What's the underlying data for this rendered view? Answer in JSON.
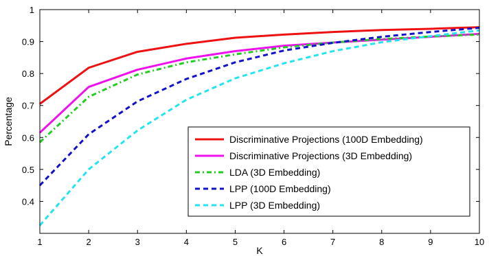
{
  "chart_data": {
    "type": "line",
    "title": "",
    "xlabel": "K",
    "ylabel": "Percentage",
    "xlim": [
      1,
      10
    ],
    "ylim": [
      0.3,
      1.0
    ],
    "x": [
      1,
      2,
      3,
      4,
      5,
      6,
      7,
      8,
      9,
      10
    ],
    "xticks": [
      "1",
      "2",
      "3",
      "4",
      "5",
      "6",
      "7",
      "8",
      "9",
      "10"
    ],
    "yticks": [
      "0.4",
      "0.5",
      "0.6",
      "0.7",
      "0.8",
      "0.9",
      "1"
    ],
    "grid": false,
    "legend_position": "bottom-right",
    "series": [
      {
        "name": "Discriminative Projections (100D Embedding)",
        "color": "#ee1111",
        "style": "solid",
        "values": [
          0.705,
          0.818,
          0.868,
          0.893,
          0.912,
          0.922,
          0.93,
          0.936,
          0.94,
          0.945
        ]
      },
      {
        "name": "Discriminative Projections (3D Embedding)",
        "color": "#ee11ee",
        "style": "solid",
        "values": [
          0.615,
          0.758,
          0.812,
          0.847,
          0.87,
          0.887,
          0.897,
          0.906,
          0.915,
          0.924
        ]
      },
      {
        "name": "LDA (3D Embedding)",
        "color": "#22cc22",
        "style": "dashdot",
        "values": [
          0.585,
          0.727,
          0.797,
          0.835,
          0.86,
          0.882,
          0.897,
          0.908,
          0.916,
          0.922
        ]
      },
      {
        "name": "LPP (100D Embedding)",
        "color": "#1111cc",
        "style": "dashed",
        "values": [
          0.45,
          0.61,
          0.713,
          0.783,
          0.835,
          0.872,
          0.896,
          0.915,
          0.93,
          0.943
        ]
      },
      {
        "name": "LPP (3D Embedding)",
        "color": "#22e5f0",
        "style": "dashed",
        "values": [
          0.325,
          0.5,
          0.622,
          0.718,
          0.785,
          0.832,
          0.87,
          0.898,
          0.917,
          0.935
        ]
      }
    ]
  }
}
